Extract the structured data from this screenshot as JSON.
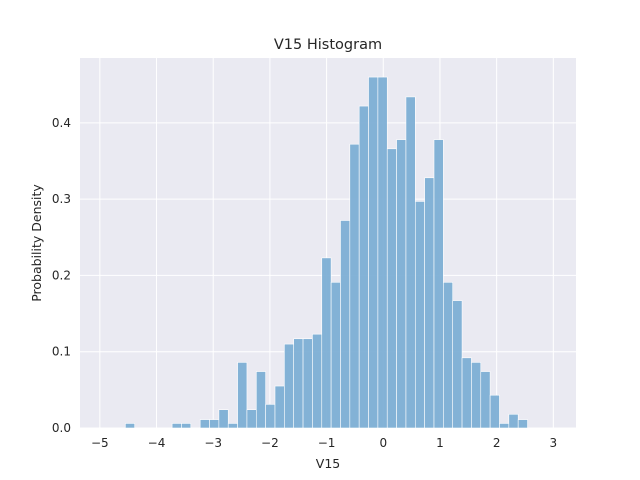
{
  "chart_data": {
    "type": "bar",
    "title": "V15 Histogram",
    "xlabel": "V15",
    "ylabel": "Probability Density",
    "xlim": [
      -5.35,
      3.4
    ],
    "ylim": [
      0,
      0.485
    ],
    "xticks": [
      -5,
      -4,
      -3,
      -2,
      -1,
      0,
      1,
      2,
      3
    ],
    "xtick_labels": [
      "−5",
      "−4",
      "−3",
      "−2",
      "−1",
      "0",
      "1",
      "2",
      "3"
    ],
    "yticks": [
      0.0,
      0.1,
      0.2,
      0.3,
      0.4
    ],
    "ytick_labels": [
      "0.0",
      "0.1",
      "0.2",
      "0.3",
      "0.4"
    ],
    "grid": true,
    "bar_color": "#7aadd4",
    "background_color": "#eaeaf2",
    "bin_width": 0.165,
    "bins": [
      {
        "x0": -4.55,
        "value": 0.006
      },
      {
        "x0": -3.725,
        "value": 0.006
      },
      {
        "x0": -3.56,
        "value": 0.006
      },
      {
        "x0": -3.23,
        "value": 0.011
      },
      {
        "x0": -3.065,
        "value": 0.011
      },
      {
        "x0": -2.9,
        "value": 0.024
      },
      {
        "x0": -2.735,
        "value": 0.006
      },
      {
        "x0": -2.57,
        "value": 0.086
      },
      {
        "x0": -2.405,
        "value": 0.024
      },
      {
        "x0": -2.24,
        "value": 0.074
      },
      {
        "x0": -2.075,
        "value": 0.031
      },
      {
        "x0": -1.91,
        "value": 0.055
      },
      {
        "x0": -1.745,
        "value": 0.11
      },
      {
        "x0": -1.58,
        "value": 0.117
      },
      {
        "x0": -1.415,
        "value": 0.117
      },
      {
        "x0": -1.25,
        "value": 0.123
      },
      {
        "x0": -1.085,
        "value": 0.223
      },
      {
        "x0": -0.92,
        "value": 0.191
      },
      {
        "x0": -0.755,
        "value": 0.272
      },
      {
        "x0": -0.59,
        "value": 0.372
      },
      {
        "x0": -0.425,
        "value": 0.422
      },
      {
        "x0": -0.26,
        "value": 0.46
      },
      {
        "x0": -0.095,
        "value": 0.46
      },
      {
        "x0": 0.07,
        "value": 0.366
      },
      {
        "x0": 0.235,
        "value": 0.378
      },
      {
        "x0": 0.4,
        "value": 0.434
      },
      {
        "x0": 0.565,
        "value": 0.297
      },
      {
        "x0": 0.73,
        "value": 0.328
      },
      {
        "x0": 0.895,
        "value": 0.378
      },
      {
        "x0": 1.06,
        "value": 0.191
      },
      {
        "x0": 1.225,
        "value": 0.167
      },
      {
        "x0": 1.39,
        "value": 0.092
      },
      {
        "x0": 1.555,
        "value": 0.086
      },
      {
        "x0": 1.72,
        "value": 0.074
      },
      {
        "x0": 1.885,
        "value": 0.043
      },
      {
        "x0": 2.05,
        "value": 0.006
      },
      {
        "x0": 2.215,
        "value": 0.018
      },
      {
        "x0": 2.38,
        "value": 0.011
      }
    ]
  }
}
